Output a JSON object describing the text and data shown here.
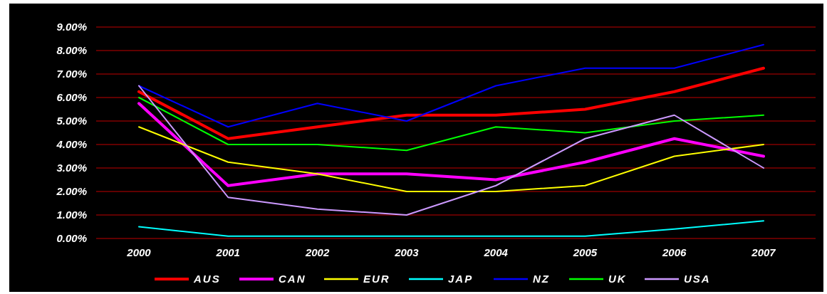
{
  "chart_data": {
    "type": "line",
    "categories": [
      "2000",
      "2001",
      "2002",
      "2003",
      "2004",
      "2005",
      "2006",
      "2007"
    ],
    "series": [
      {
        "name": "AUS",
        "color": "#ff0000",
        "values": [
          6.25,
          4.25,
          4.75,
          5.25,
          5.25,
          5.5,
          6.25,
          7.25
        ]
      },
      {
        "name": "CAN",
        "color": "#ff00ff",
        "values": [
          5.75,
          2.25,
          2.75,
          2.75,
          2.5,
          3.25,
          4.25,
          3.5
        ]
      },
      {
        "name": "EUR",
        "color": "#ffff00",
        "values": [
          4.75,
          3.25,
          2.75,
          2.0,
          2.0,
          2.25,
          3.5,
          4.0
        ]
      },
      {
        "name": "JAP",
        "color": "#00ffff",
        "values": [
          0.5,
          0.1,
          0.1,
          0.1,
          0.1,
          0.1,
          0.4,
          0.75
        ]
      },
      {
        "name": "NZ",
        "color": "#0000ff",
        "values": [
          6.5,
          4.75,
          5.75,
          5.0,
          6.5,
          7.25,
          7.25,
          8.25
        ]
      },
      {
        "name": "UK",
        "color": "#00ff00",
        "values": [
          6.0,
          4.0,
          4.0,
          3.75,
          4.75,
          4.5,
          5.0,
          5.25
        ]
      },
      {
        "name": "USA",
        "color": "#cc99ff",
        "values": [
          6.5,
          1.75,
          1.25,
          1.0,
          2.25,
          4.25,
          5.25,
          3.0
        ]
      }
    ],
    "ylim": [
      0,
      9
    ],
    "yticks": [
      {
        "value": 0,
        "label": "0.00%"
      },
      {
        "value": 1,
        "label": "1.00%"
      },
      {
        "value": 2,
        "label": "2.00%"
      },
      {
        "value": 3,
        "label": "3.00%"
      },
      {
        "value": 4,
        "label": "4.00%"
      },
      {
        "value": 5,
        "label": "5.00%"
      },
      {
        "value": 6,
        "label": "6.00%"
      },
      {
        "value": 7,
        "label": "7.00%"
      },
      {
        "value": 8,
        "label": "8.00%"
      },
      {
        "value": 9,
        "label": "9.00%"
      }
    ],
    "grid": "y",
    "legend": "bottom",
    "marker": "none",
    "line_style": "solid"
  }
}
